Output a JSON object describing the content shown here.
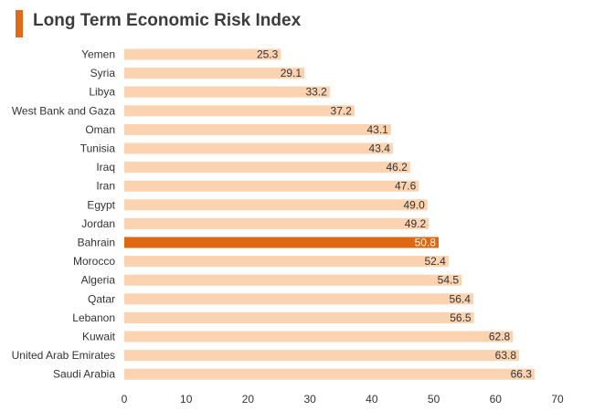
{
  "header": {
    "title": "Long Term Economic Risk Index"
  },
  "colors": {
    "bar": "#fbd3b1",
    "highlight": "#de6712",
    "accent": "#e06a1a",
    "text": "#333333",
    "highlight_label": "#ffffff"
  },
  "chart_data": {
    "type": "bar",
    "orientation": "horizontal",
    "title": "Long Term Economic Risk Index",
    "xlabel": "",
    "ylabel": "",
    "xlim": [
      0,
      70
    ],
    "xticks": [
      0,
      10,
      20,
      30,
      40,
      50,
      60,
      70
    ],
    "grid": false,
    "highlight": "Bahrain",
    "categories": [
      "Yemen",
      "Syria",
      "Libya",
      "West Bank and Gaza",
      "Oman",
      "Tunisia",
      "Iraq",
      "Iran",
      "Egypt",
      "Jordan",
      "Bahrain",
      "Morocco",
      "Algeria",
      "Qatar",
      "Lebanon",
      "Kuwait",
      "United Arab Emirates",
      "Saudi Arabia"
    ],
    "values": [
      25.3,
      29.1,
      33.2,
      37.2,
      43.1,
      43.4,
      46.2,
      47.6,
      49.0,
      49.2,
      50.8,
      52.4,
      54.5,
      56.4,
      56.5,
      62.8,
      63.8,
      66.3
    ],
    "value_labels": [
      "25.3",
      "29.1",
      "33.2",
      "37.2",
      "43.1",
      "43.4",
      "46.2",
      "47.6",
      "49.0",
      "49.2",
      "50.8",
      "52.4",
      "54.5",
      "56.4",
      "56.5",
      "62.8",
      "63.8",
      "66.3"
    ]
  }
}
